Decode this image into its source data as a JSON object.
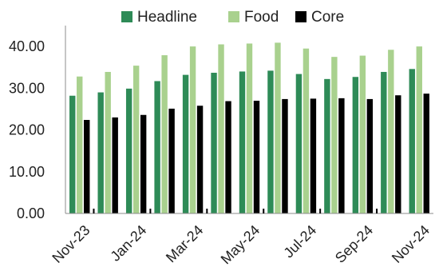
{
  "chart_data": {
    "type": "bar",
    "categories": [
      "Nov-23",
      "Dec-23",
      "Jan-24",
      "Feb-24",
      "Mar-24",
      "Apr-24",
      "May-24",
      "Jun-24",
      "Jul-24",
      "Aug-24",
      "Sep-24",
      "Oct-24",
      "Nov-24"
    ],
    "x_tick_labels": [
      "Nov-23",
      "Jan-24",
      "Mar-24",
      "May-24",
      "Jul-24",
      "Sep-24",
      "Nov-24"
    ],
    "series": [
      {
        "name": "Headline",
        "color": "#2e8b57",
        "values": [
          28.2,
          29.0,
          29.9,
          31.7,
          33.2,
          33.7,
          34.0,
          34.2,
          33.4,
          32.2,
          32.7,
          33.9,
          34.6
        ]
      },
      {
        "name": "Food",
        "color": "#a9d18e",
        "values": [
          32.8,
          33.9,
          35.4,
          37.9,
          40.0,
          40.5,
          40.7,
          40.9,
          39.5,
          37.5,
          37.8,
          39.2,
          40.0
        ]
      },
      {
        "name": "Core",
        "color": "#000000",
        "values": [
          22.4,
          23.0,
          23.6,
          25.1,
          25.8,
          26.9,
          27.0,
          27.4,
          27.5,
          27.6,
          27.4,
          28.3,
          28.7
        ]
      }
    ],
    "y_tick_labels": [
      "0.00",
      "10.00",
      "20.00",
      "30.00",
      "40.00"
    ],
    "ylim": [
      0,
      45
    ],
    "title": "",
    "xlabel": "",
    "ylabel": "",
    "legend_position": "top",
    "grid": false
  }
}
